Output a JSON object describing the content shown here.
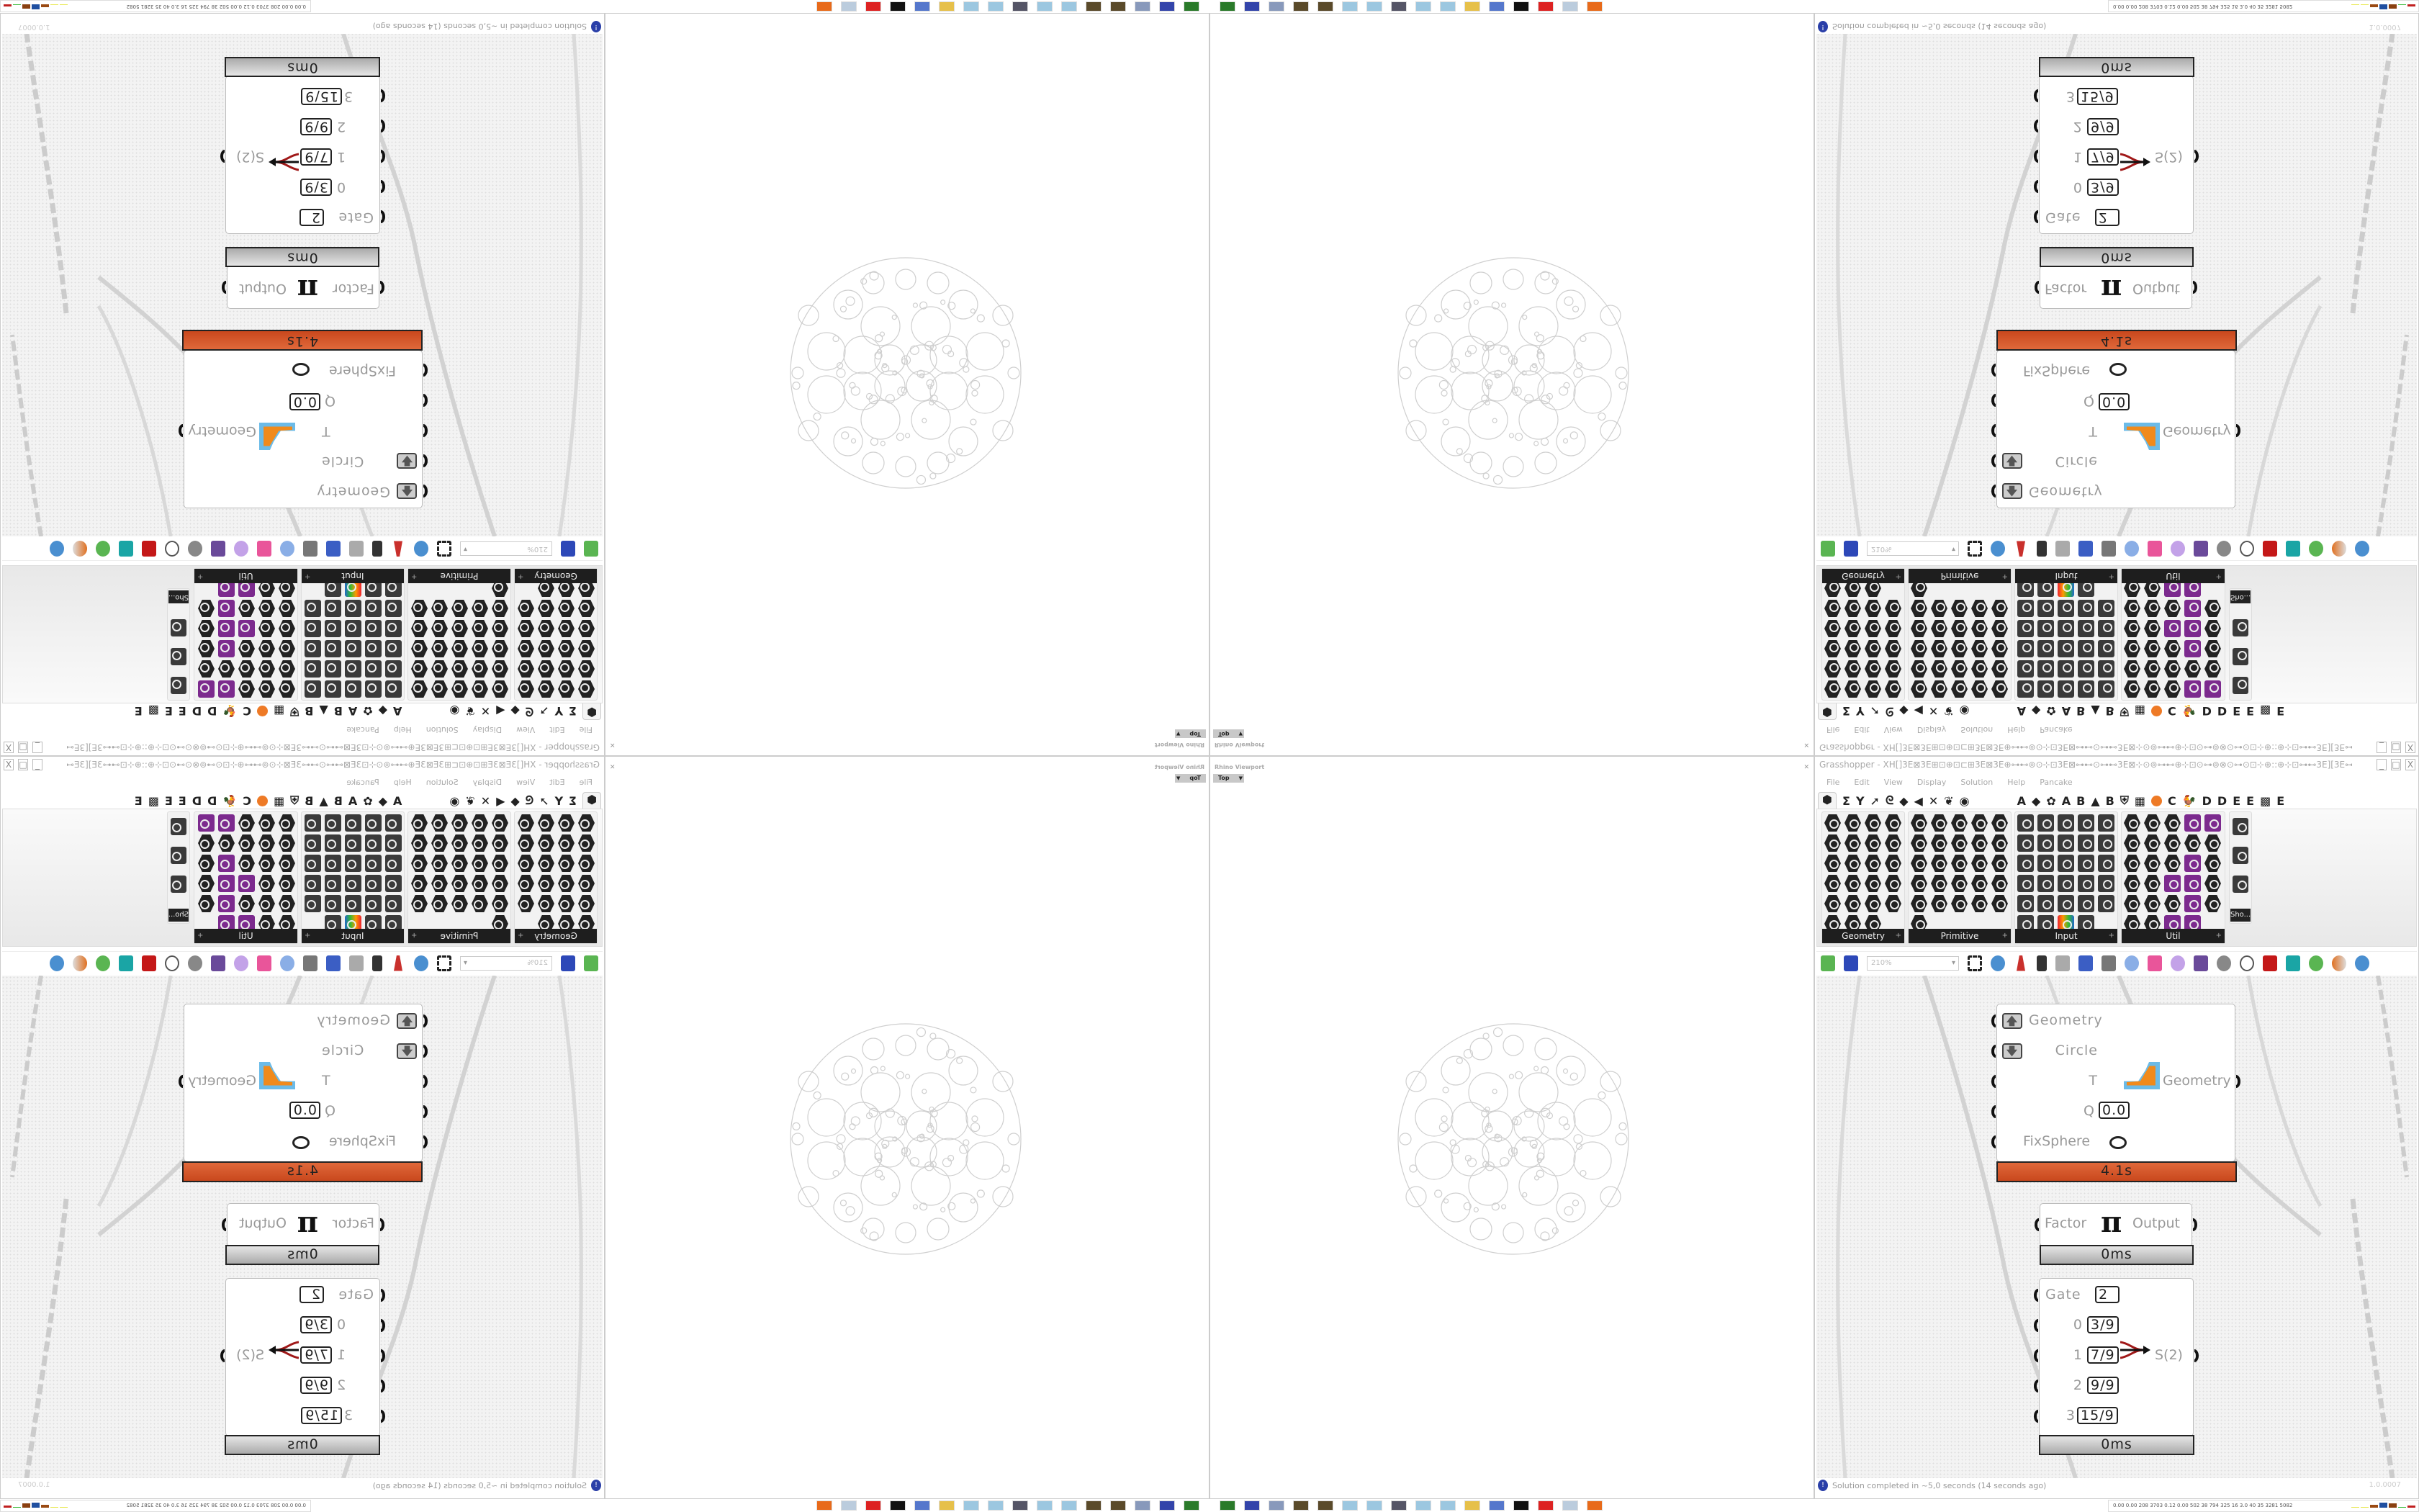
{
  "rhino": {
    "title": "Rhino Viewport",
    "view": "Top",
    "close": "✕"
  },
  "grasshopper": {
    "title": "Grasshopper - XH[]3E⊠3E⊞⊡⊕⊡⊏⊞3E⊠3E⊕⊶⊷⊚⊙⊹⊡3E⊠⊶⊷⊙⊶⊷3E⊠⊹⊙⊚⊶⊷⊕⊹⊡⊙⊶⊚⊗⊙⊶⊙⊡⊹⊕::⊕⊹⊡⊶⊷3E][3E⊶⊷⊡⊹⊕::⊕⊹⊡⊙⊶⊚⊗⊙⊶⊙⊡⊹⊕⊶⊷⊚⊙⊹⊡3E⊠⊶⊷⊙⊶⊷...",
    "window_buttons": [
      "_",
      "□",
      "X"
    ],
    "menu": [
      "File",
      "Edit",
      "View",
      "Display",
      "Solution",
      "Help",
      "Pancake"
    ],
    "tabs_left": [
      "⬢",
      "Σ",
      "Y",
      "➚",
      "ᘓ",
      "◆",
      "◀",
      "✕",
      "❦",
      "◉"
    ],
    "tabs_right": [
      "A",
      "◆",
      "✿",
      "A",
      "B",
      "▲",
      "B",
      "⛨",
      "▦",
      "●",
      "C",
      "🐓",
      "D",
      "D",
      "E",
      "E",
      "▩",
      "E"
    ],
    "panels": [
      {
        "label": "Geometry",
        "plus": "+"
      },
      {
        "label": "Primitive",
        "plus": "+"
      },
      {
        "label": "Input",
        "plus": "+"
      },
      {
        "label": "Util",
        "plus": "+"
      }
    ],
    "show_panel": "Sho...",
    "zoom": "210%",
    "components": {
      "fixsphere": {
        "inputs": [
          "Geometry",
          "Circle",
          "T",
          "Q",
          "FixSphere"
        ],
        "q_value": "0.0",
        "output": "Geometry",
        "time": "4.1s",
        "up_arrow": "🡅",
        "down_arrow": "🡇"
      },
      "pi": {
        "input": "Factor",
        "symbol": "π",
        "output": "Output",
        "time": "0ms"
      },
      "stream_gate": {
        "gate_label": "Gate",
        "gate_value": "2",
        "inputs": [
          {
            "label": "0",
            "value": "3/9"
          },
          {
            "label": "1",
            "value": "7/9"
          },
          {
            "label": "2",
            "value": "9/9"
          },
          {
            "label": "3",
            "value": "15/9"
          }
        ],
        "output": "S(2)",
        "time": "0ms"
      }
    },
    "status": "Solution completed in ~5,0 seconds (14 seconds ago)",
    "version": "1.0.0007"
  },
  "taskbar": {
    "tray_text": "0.00 0.00 208 3703 0.12 0.00 502  38  794  325  16  3.0  40  35  3281 5082",
    "tray_bar_colors": [
      "#e8e850",
      "#e8e850",
      "#9a4a12",
      "#1f4fa0",
      "#8a4010",
      "#3bbb3b",
      "#c02020"
    ]
  }
}
